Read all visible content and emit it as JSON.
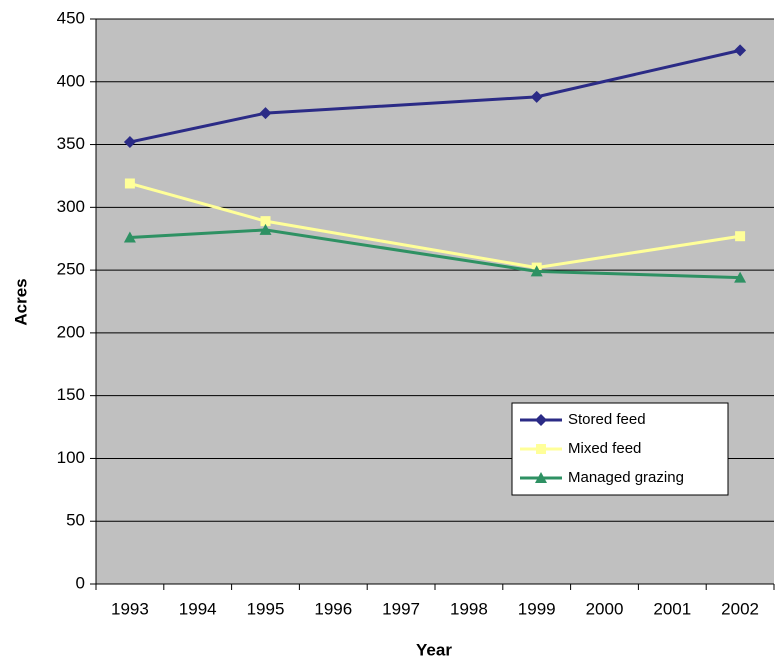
{
  "chart_data": {
    "type": "line",
    "x_label": "Year",
    "y_label": "Acres",
    "x": [
      1993,
      1995,
      1999,
      2002
    ],
    "series": [
      {
        "name": "Stored feed",
        "color": "#2b2b86",
        "marker": "diamond",
        "values": [
          352,
          375,
          388,
          425
        ]
      },
      {
        "name": "Mixed feed",
        "color": "#ffff99",
        "marker": "square",
        "values": [
          319,
          289,
          252,
          277
        ]
      },
      {
        "name": "Managed grazing",
        "color": "#2e9163",
        "marker": "triangle",
        "values": [
          276,
          282,
          249,
          244
        ]
      }
    ],
    "xlim": [
      1992.5,
      2002.5
    ],
    "xticks": [
      1993,
      1994,
      1995,
      1996,
      1997,
      1998,
      1999,
      2000,
      2001,
      2002
    ],
    "ylim": [
      0,
      450
    ],
    "yticks": [
      0,
      50,
      100,
      150,
      200,
      250,
      300,
      350,
      400,
      450
    ],
    "grid": true,
    "background": "#c0c0c0",
    "legend": "lower right"
  }
}
